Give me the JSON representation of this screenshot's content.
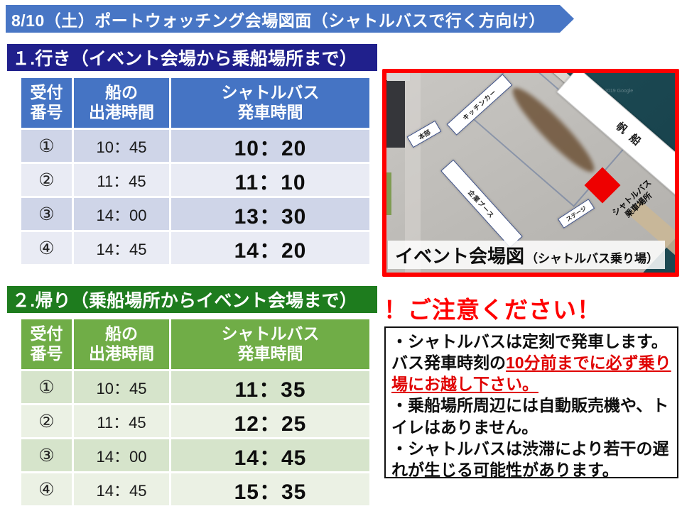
{
  "banner": {
    "title": "8/10（土）ポートウォッチング会場図面（シャトルバスで行く方向け）"
  },
  "outbound": {
    "heading": "１.行き（イベント会場から乗船場所まで）",
    "columns": {
      "no": "受付\n番号",
      "ship": "船の\n出港時間",
      "bus": "シャトルバス\n発車時間"
    },
    "rows": [
      {
        "no": "①",
        "ship": "10：45",
        "bus": "10：20"
      },
      {
        "no": "②",
        "ship": "11：45",
        "bus": "11：10"
      },
      {
        "no": "③",
        "ship": "14：00",
        "bus": "13：30"
      },
      {
        "no": "④",
        "ship": "14：45",
        "bus": "14：20"
      }
    ]
  },
  "return": {
    "heading": "２.帰り（乗船場所からイベント会場まで）",
    "columns": {
      "no": "受付\n番号",
      "ship": "船の\n出港時間",
      "bus": "シャトルバス\n発車時間"
    },
    "rows": [
      {
        "no": "①",
        "ship": "10：45",
        "bus": "11：35"
      },
      {
        "no": "②",
        "ship": "11：45",
        "bus": "12：25"
      },
      {
        "no": "③",
        "ship": "14：00",
        "bus": "14：45"
      },
      {
        "no": "④",
        "ship": "14：45",
        "bus": "15：35"
      }
    ]
  },
  "map": {
    "caption_main": "イベント会場図",
    "caption_sub": "（シャトルバス乗り場）",
    "labels": {
      "honbu": "本部",
      "kitchen_car": "キッチンカー",
      "booth": "企業ブース",
      "stage": "ステージ",
      "sailing_ship": "帆船",
      "shuttle_stop": "シャトルバス\n乗車場所"
    },
    "watermark": "© 2019 Google"
  },
  "notice": {
    "heading": "！ご注意ください！",
    "item1_black": "・シャトルバスは定刻で発車します。バス発車時刻の",
    "item1_red": "10分前までに必ず乗り場にお越し下さい。",
    "item2": "・乗船場所周辺には自動販売機や、トイレはありません。",
    "item3": "・シャトルバスは渋滞により若干の遅れが生じる可能性があります。"
  },
  "colors": {
    "banner_blue": "#4876C5",
    "section_navy": "#20208C",
    "table_header_blue": "#4574C4",
    "section_green": "#1E7C1E",
    "table_header_green": "#70AD47",
    "alert_red": "#FF0000",
    "map_border_red": "#FF0000"
  }
}
